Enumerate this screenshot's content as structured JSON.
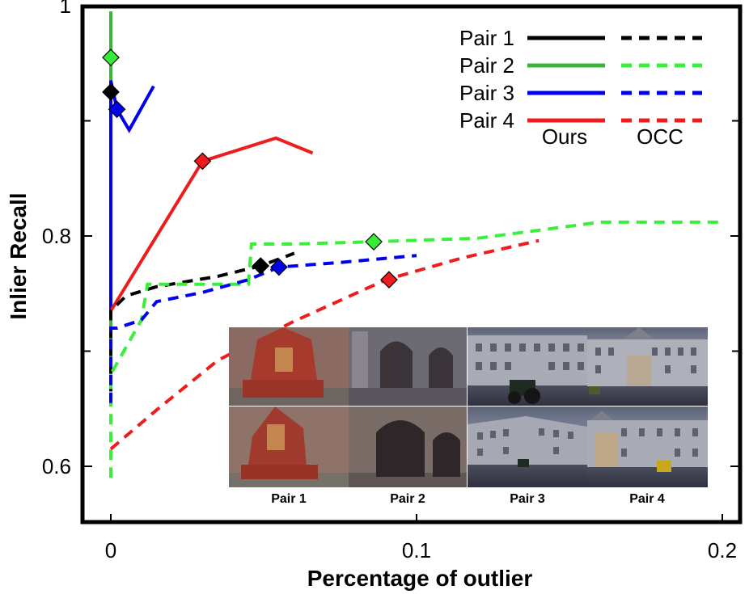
{
  "chart_data": {
    "type": "line",
    "title": "",
    "xlabel": "Percentage of outlier",
    "ylabel": "Inlier Recall",
    "xlim": [
      -0.01,
      0.2
    ],
    "ylim": [
      0.55,
      1.0
    ],
    "xticks": [
      0,
      0.1,
      0.2
    ],
    "xtick_labels": [
      "0",
      "0.1",
      "0.2"
    ],
    "yticks": [
      0.6,
      0.8,
      1.0
    ],
    "ytick_labels": [
      "0.6",
      "0.8",
      "1"
    ],
    "grid": false,
    "legend_position": "top-right",
    "legend_column_labels": [
      "Ours",
      "OCC"
    ],
    "series": [
      {
        "name": "Pair 1",
        "method": "Ours",
        "color": "#000000",
        "dash": "solid",
        "x": [
          0.0,
          0.0
        ],
        "y": [
          0.7355,
          0.925
        ],
        "marker": {
          "x": 0.0,
          "y": 0.925
        }
      },
      {
        "name": "Pair 2",
        "method": "Ours",
        "color": "#3cb43c",
        "dash": "solid",
        "x": [
          0.0,
          0.0
        ],
        "y": [
          0.68,
          0.995
        ],
        "marker": {
          "x": 0.0,
          "y": 0.955
        }
      },
      {
        "name": "Pair 3",
        "method": "Ours",
        "color": "#0000ee",
        "dash": "solid",
        "x": [
          0.0,
          0.0,
          0.002,
          0.006,
          0.014
        ],
        "y": [
          0.7355,
          0.935,
          0.91,
          0.892,
          0.93
        ],
        "marker": {
          "x": 0.002,
          "y": 0.91
        }
      },
      {
        "name": "Pair 4",
        "method": "Ours",
        "color": "#ee1c1c",
        "dash": "solid",
        "x": [
          0.0,
          0.03,
          0.054,
          0.066
        ],
        "y": [
          0.735,
          0.865,
          0.885,
          0.872
        ],
        "marker": {
          "x": 0.03,
          "y": 0.865
        }
      },
      {
        "name": "Pair 1",
        "method": "OCC",
        "color": "#000000",
        "dash": "dashed",
        "x": [
          0.0,
          0.0,
          0.005,
          0.015,
          0.035,
          0.049,
          0.06
        ],
        "y": [
          0.665,
          0.735,
          0.748,
          0.756,
          0.765,
          0.774,
          0.785
        ],
        "marker": {
          "x": 0.049,
          "y": 0.774
        }
      },
      {
        "name": "Pair 2",
        "method": "OCC",
        "color": "#3cee3c",
        "dash": "dashed",
        "x": [
          0.0,
          0.0,
          0.01,
          0.012,
          0.045,
          0.046,
          0.06,
          0.086,
          0.12,
          0.16,
          0.165,
          0.2
        ],
        "y": [
          0.59,
          0.68,
          0.727,
          0.758,
          0.758,
          0.793,
          0.793,
          0.795,
          0.798,
          0.812,
          0.812,
          0.812
        ],
        "marker": {
          "x": 0.086,
          "y": 0.795
        }
      },
      {
        "name": "Pair 3",
        "method": "OCC",
        "color": "#0000ee",
        "dash": "dashed",
        "x": [
          0.0,
          0.0,
          0.002,
          0.01,
          0.015,
          0.03,
          0.045,
          0.055,
          0.075,
          0.1
        ],
        "y": [
          0.655,
          0.72,
          0.72,
          0.727,
          0.743,
          0.751,
          0.762,
          0.773,
          0.777,
          0.783
        ],
        "marker": {
          "x": 0.055,
          "y": 0.773
        }
      },
      {
        "name": "Pair 4",
        "method": "OCC",
        "color": "#ee1c1c",
        "dash": "dashed",
        "x": [
          0.0,
          0.015,
          0.035,
          0.06,
          0.09,
          0.115,
          0.14
        ],
        "y": [
          0.615,
          0.649,
          0.692,
          0.726,
          0.762,
          0.781,
          0.796
        ],
        "marker": {
          "x": 0.091,
          "y": 0.762
        }
      }
    ]
  },
  "inset": {
    "captions": [
      "Pair 1",
      "Pair 2",
      "Pair 3",
      "Pair 4"
    ]
  }
}
